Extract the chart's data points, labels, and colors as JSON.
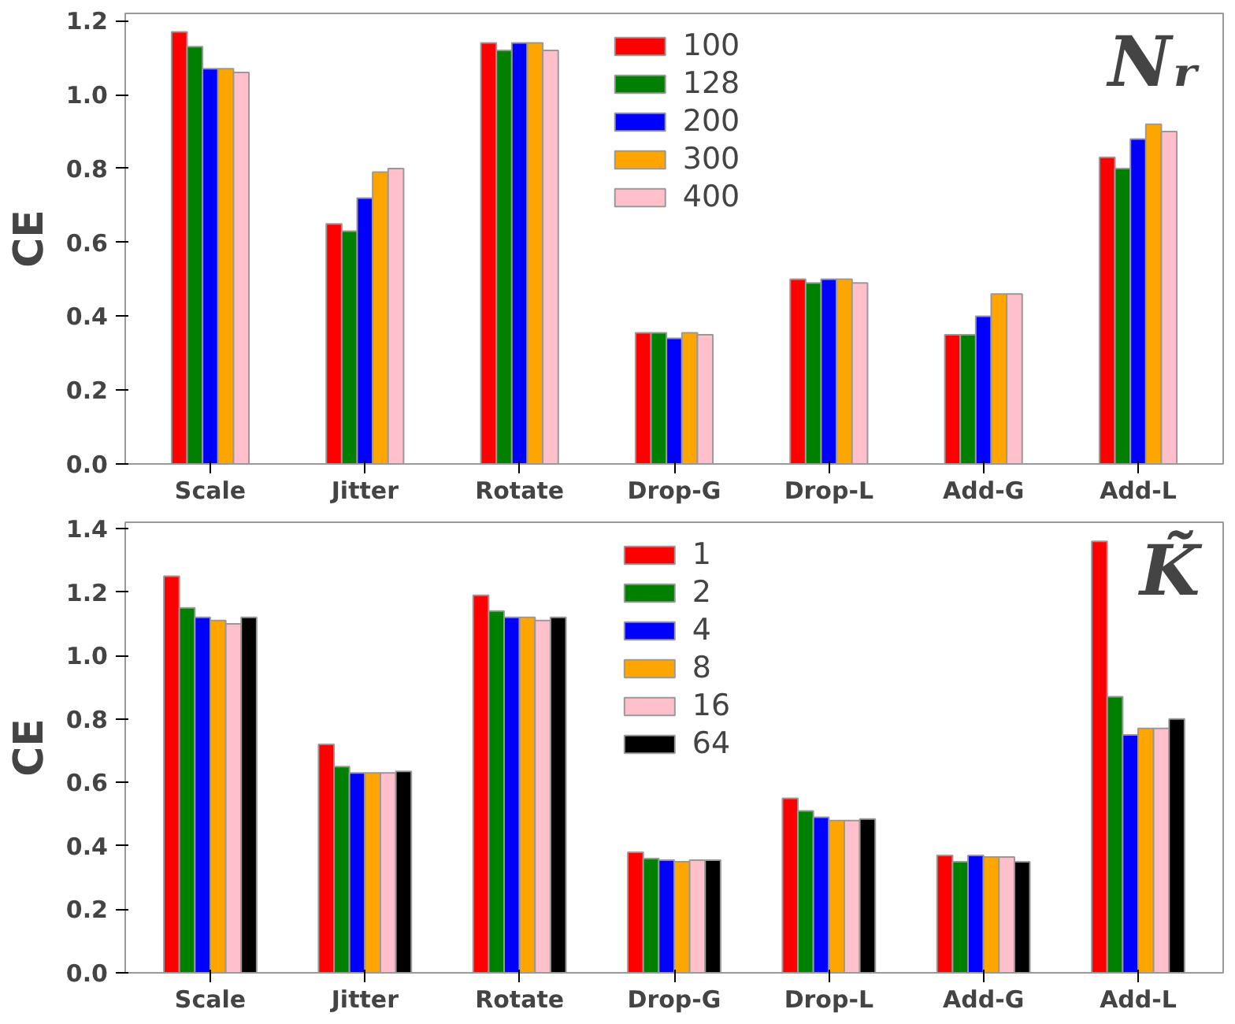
{
  "chart_data": [
    {
      "type": "bar",
      "title": "Nᵣ",
      "ylabel": "CE",
      "categories": [
        "Scale",
        "Jitter",
        "Rotate",
        "Drop-G",
        "Drop-L",
        "Add-G",
        "Add-L"
      ],
      "ylim": [
        0,
        1.22
      ],
      "yticks": [
        {
          "value": 0,
          "label": "0.0"
        },
        {
          "value": 0.2,
          "label": "0.2"
        },
        {
          "value": 0.4,
          "label": "0.4"
        },
        {
          "value": 0.6,
          "label": "0.6"
        },
        {
          "value": 0.8,
          "label": "0.8"
        },
        {
          "value": 1.0,
          "label": "1.0"
        },
        {
          "value": 1.2,
          "label": "1.2"
        }
      ],
      "grid": false,
      "legend": "top",
      "series": [
        {
          "name": "100",
          "color": "#ff0000",
          "values": [
            1.17,
            0.65,
            1.14,
            0.355,
            0.5,
            0.35,
            0.83
          ]
        },
        {
          "name": "128",
          "color": "#008000",
          "values": [
            1.13,
            0.63,
            1.12,
            0.355,
            0.49,
            0.35,
            0.8
          ]
        },
        {
          "name": "200",
          "color": "#0000ff",
          "values": [
            1.07,
            0.72,
            1.14,
            0.34,
            0.5,
            0.4,
            0.88
          ]
        },
        {
          "name": "300",
          "color": "#ffa500",
          "values": [
            1.07,
            0.79,
            1.14,
            0.355,
            0.5,
            0.46,
            0.92
          ]
        },
        {
          "name": "400",
          "color": "#ffc0cb",
          "values": [
            1.06,
            0.8,
            1.12,
            0.35,
            0.49,
            0.46,
            0.9
          ]
        }
      ]
    },
    {
      "type": "bar",
      "title": "K̃",
      "ylabel": "CE",
      "categories": [
        "Scale",
        "Jitter",
        "Rotate",
        "Drop-G",
        "Drop-L",
        "Add-G",
        "Add-L"
      ],
      "ylim": [
        0,
        1.42
      ],
      "yticks": [
        {
          "value": 0,
          "label": "0.0"
        },
        {
          "value": 0.2,
          "label": "0.2"
        },
        {
          "value": 0.4,
          "label": "0.4"
        },
        {
          "value": 0.6,
          "label": "0.6"
        },
        {
          "value": 0.8,
          "label": "0.8"
        },
        {
          "value": 1.0,
          "label": "1.0"
        },
        {
          "value": 1.2,
          "label": "1.2"
        },
        {
          "value": 1.4,
          "label": "1.4"
        }
      ],
      "grid": false,
      "legend": "top",
      "series": [
        {
          "name": "1",
          "color": "#ff0000",
          "values": [
            1.25,
            0.72,
            1.19,
            0.38,
            0.55,
            0.37,
            1.36
          ]
        },
        {
          "name": "2",
          "color": "#008000",
          "values": [
            1.15,
            0.65,
            1.14,
            0.36,
            0.51,
            0.35,
            0.87
          ]
        },
        {
          "name": "4",
          "color": "#0000ff",
          "values": [
            1.12,
            0.63,
            1.12,
            0.355,
            0.49,
            0.37,
            0.75
          ]
        },
        {
          "name": "8",
          "color": "#ffa500",
          "values": [
            1.11,
            0.63,
            1.12,
            0.35,
            0.48,
            0.365,
            0.77
          ]
        },
        {
          "name": "16",
          "color": "#ffc0cb",
          "values": [
            1.1,
            0.63,
            1.11,
            0.355,
            0.48,
            0.365,
            0.77
          ]
        },
        {
          "name": "64",
          "color": "#000000",
          "values": [
            1.12,
            0.635,
            1.12,
            0.355,
            0.485,
            0.35,
            0.8
          ]
        }
      ]
    }
  ]
}
